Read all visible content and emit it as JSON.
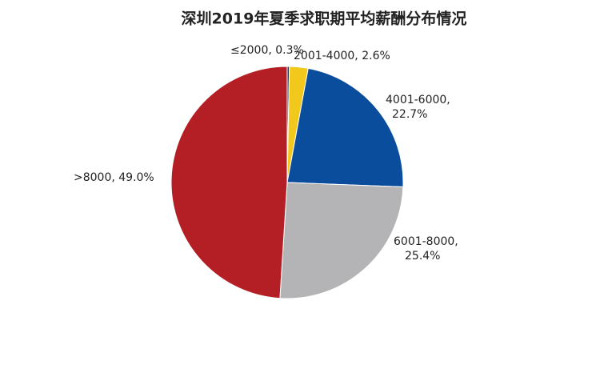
{
  "chart_data": {
    "type": "pie",
    "title": "深圳2019年夏季求职期平均薪酬分布情况",
    "labels": [
      [
        "≤2000, 0.3%"
      ],
      [
        "2001-4000, 2.6%"
      ],
      [
        "4001-6000,",
        "22.7%"
      ],
      [
        "6001-8000,",
        "25.4%"
      ],
      [
        ">8000, 49.0%"
      ]
    ],
    "values": [
      0.3,
      2.6,
      22.7,
      25.4,
      49.0
    ],
    "colors": [
      "#1f3864",
      "#f2c81d",
      "#0a4d9c",
      "#b4b4b6",
      "#b41f25"
    ]
  }
}
